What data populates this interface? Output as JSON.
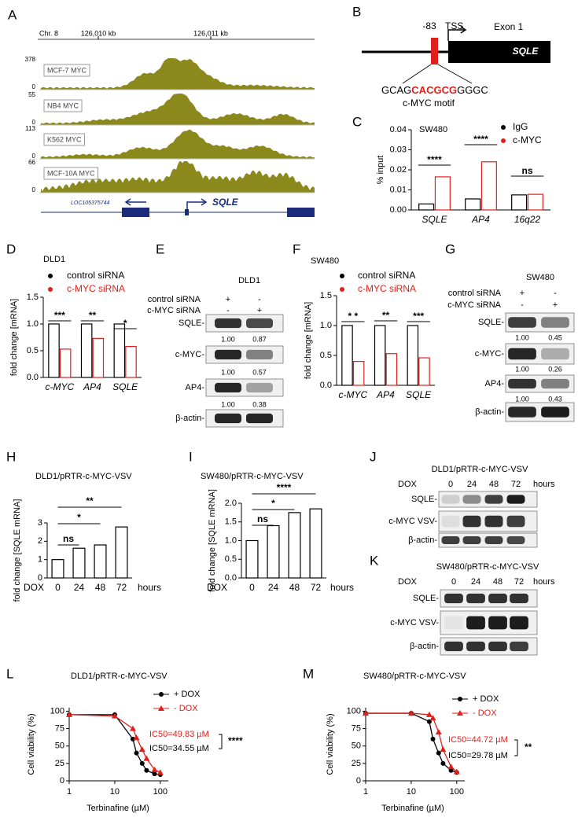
{
  "panel_labels": [
    "A",
    "B",
    "C",
    "D",
    "E",
    "F",
    "G",
    "H",
    "I",
    "J",
    "K",
    "L",
    "M"
  ],
  "genome_track": {
    "chromosome": "Chr. 8",
    "coordinates": [
      "126,010 kb",
      "126,011 kb"
    ],
    "tracks": [
      {
        "name": "MCF-7 MYC",
        "max": 378,
        "min": 0
      },
      {
        "name": "NB4 MYC",
        "max": 55,
        "min": 0
      },
      {
        "name": "K562 MYC",
        "max": 113,
        "min": 0
      },
      {
        "name": "MCF-10A MYC",
        "max": 66,
        "min": 0
      }
    ],
    "genes": [
      "LOC105375744",
      "SQLE"
    ]
  },
  "promoter": {
    "position": "-83",
    "tss": "TSS",
    "exon": "Exon 1",
    "gene": "SQLE",
    "sequence": [
      "GCAG",
      "CACGCG",
      "GGGC"
    ],
    "motif": "c-MYC motif"
  },
  "blots": [
    {
      "title": "DLD1",
      "conditions": [
        {
          "label": "control siRNA",
          "signs": [
            "+",
            "-"
          ]
        },
        {
          "label": "c-MYC siRNA",
          "signs": [
            "-",
            "+"
          ]
        }
      ],
      "rows": [
        {
          "label": "SQLE-",
          "quantification": [
            "1.00",
            "0.87"
          ]
        },
        {
          "label": "c-MYC-",
          "quantification": [
            "1.00",
            "0.57"
          ]
        },
        {
          "label": "AP4-",
          "quantification": [
            "1.00",
            "0.38"
          ]
        },
        {
          "label": "β-actin-"
        }
      ]
    },
    {
      "title": "SW480",
      "conditions": [
        {
          "label": "control siRNA",
          "signs": [
            "+",
            "-"
          ]
        },
        {
          "label": "c-MYC siRNA",
          "signs": [
            "-",
            "+"
          ]
        }
      ],
      "rows": [
        {
          "label": "SQLE-",
          "quantification": [
            "1.00",
            "0.45"
          ]
        },
        {
          "label": "c-MYC-",
          "quantification": [
            "1.00",
            "0.26"
          ]
        },
        {
          "label": "AP4-",
          "quantification": [
            "1.00",
            "0.43"
          ]
        },
        {
          "label": "β-actin-"
        }
      ]
    },
    {
      "title": "DLD1/pRTR-c-MYC-VSV",
      "time_label": "DOX",
      "timepoints": [
        "0",
        "24",
        "48",
        "72"
      ],
      "time_unit": "hours",
      "rows": [
        {
          "label": "SQLE-"
        },
        {
          "label": "c-MYC VSV-"
        },
        {
          "label": "β-actin-"
        }
      ]
    },
    {
      "title": "SW480/pRTR-c-MYC-VSV",
      "time_label": "DOX",
      "timepoints": [
        "0",
        "24",
        "48",
        "72"
      ],
      "time_unit": "hours",
      "rows": [
        {
          "label": "SQLE-"
        },
        {
          "label": "c-MYC VSV-"
        },
        {
          "label": "β-actin-"
        }
      ]
    }
  ],
  "chart_data": [
    {
      "type": "bar",
      "title": "SW480",
      "y_label": "% input",
      "categories": [
        "SQLE",
        "AP4",
        "16q22"
      ],
      "category_style": "italic",
      "series": [
        {
          "name": "IgG",
          "color": "#000000",
          "values": [
            0.003,
            0.0055,
            0.0075
          ]
        },
        {
          "name": "c-MYC",
          "color": "#e0201b",
          "values": [
            0.0165,
            0.024,
            0.0078
          ]
        }
      ],
      "ylim": [
        0,
        0.04
      ],
      "yticks": [
        {
          "value": 0,
          "label": "0.00"
        },
        {
          "value": 0.01,
          "label": "0.01"
        },
        {
          "value": 0.02,
          "label": "0.02"
        },
        {
          "value": 0.03,
          "label": "0.03"
        },
        {
          "value": 0.04,
          "label": "0.04"
        }
      ],
      "annotations": [
        "****",
        "****",
        "ns"
      ]
    },
    {
      "type": "bar",
      "title": "DLD1",
      "y_label": "fold change [mRNA]",
      "categories": [
        "c-MYC",
        "AP4",
        "SQLE"
      ],
      "category_style": "italic",
      "legend_text_colored": true,
      "series": [
        {
          "name": "control siRNA",
          "color": "#000000",
          "values": [
            1.0,
            1.0,
            1.0
          ]
        },
        {
          "name": "c-MYC siRNA",
          "color": "#e0201b",
          "values": [
            0.53,
            0.73,
            0.58
          ]
        }
      ],
      "ylim": [
        0,
        1.5
      ],
      "yticks": [
        {
          "value": 0,
          "label": "0.0"
        },
        {
          "value": 0.5,
          "label": "0.5"
        },
        {
          "value": 1,
          "label": "1.0"
        },
        {
          "value": 1.5,
          "label": "1.5"
        }
      ],
      "annotations": [
        "***",
        "**",
        "*"
      ]
    },
    {
      "type": "bar",
      "title": "SW480",
      "y_label": "fold change [mRNA]",
      "categories": [
        "c-MYC",
        "AP4",
        "SQLE"
      ],
      "category_style": "italic",
      "legend_text_colored": true,
      "series": [
        {
          "name": "control siRNA",
          "color": "#000000",
          "values": [
            1.0,
            1.0,
            1.0
          ]
        },
        {
          "name": "c-MYC siRNA",
          "color": "#e0201b",
          "values": [
            0.4,
            0.53,
            0.46
          ]
        }
      ],
      "ylim": [
        0,
        1.5
      ],
      "yticks": [
        {
          "value": 0,
          "label": "0.0"
        },
        {
          "value": 0.5,
          "label": "0.5"
        },
        {
          "value": 1,
          "label": "1.0"
        },
        {
          "value": 1.5,
          "label": "1.5"
        }
      ],
      "annotations": [
        "* *",
        "**",
        "***"
      ]
    },
    {
      "type": "bar",
      "title": "DLD1/pRTR-c-MYC-VSV",
      "y_label": "fold change [SQLE mRNA]",
      "x_label": "DOX",
      "x_unit": "hours",
      "categories": [
        "0",
        "24",
        "48",
        "72"
      ],
      "values": [
        1.0,
        1.62,
        1.8,
        2.78
      ],
      "color": "#000000",
      "ylim": [
        0,
        3
      ],
      "yticks": [
        0,
        1,
        2,
        3
      ],
      "annotations": [
        "ns",
        "*",
        "**"
      ]
    },
    {
      "type": "bar",
      "title": "SW480/pRTR-c-MYC-VSV",
      "y_label": "fold change [SQLE mRNA]",
      "x_label": "DOX",
      "x_unit": "hours",
      "categories": [
        "0",
        "24",
        "48",
        "72"
      ],
      "values": [
        1.0,
        1.4,
        1.75,
        1.85
      ],
      "color": "#000000",
      "ylim": [
        0,
        2
      ],
      "yticks": [
        {
          "value": 0,
          "label": "0.0"
        },
        {
          "value": 0.5,
          "label": "0.5"
        },
        {
          "value": 1,
          "label": "1.0"
        },
        {
          "value": 1.5,
          "label": "1.5"
        },
        {
          "value": 2,
          "label": "2.0"
        }
      ],
      "annotations": [
        "ns",
        "*",
        "****"
      ]
    },
    {
      "type": "line",
      "title": "DLD1/pRTR-c-MYC-VSV",
      "x_label": "Terbinafine (µM)",
      "y_label": "Cell viability (%)",
      "xscale": "log",
      "x": [
        1,
        10,
        25,
        30,
        40,
        50,
        75,
        100
      ],
      "xlim": [
        1,
        150
      ],
      "xticks": [
        1,
        10,
        100
      ],
      "ylim": [
        0,
        105
      ],
      "yticks": [
        0,
        25,
        50,
        75,
        100
      ],
      "series": [
        {
          "name": "+ DOX",
          "color": "#000000",
          "marker": "circle",
          "values": [
            95,
            95,
            60,
            40,
            25,
            15,
            10,
            9
          ]
        },
        {
          "name": "- DOX",
          "color": "#e0201b",
          "marker": "triangle",
          "values": [
            95,
            93,
            75,
            62,
            45,
            32,
            16,
            12
          ]
        }
      ],
      "annotations": [
        {
          "text": "IC50=49.83 µM",
          "color": "#e0201b"
        },
        {
          "text": "IC50=34.55 µM",
          "color": "#000000"
        }
      ],
      "significance": "****"
    },
    {
      "type": "line",
      "title": "SW480/pRTR-c-MYC-VSV",
      "x_label": "Terbinafine (µM)",
      "y_label": "Cell viability (%)",
      "xscale": "log",
      "x": [
        1,
        10,
        25,
        30,
        40,
        50,
        75,
        100
      ],
      "xlim": [
        1,
        150
      ],
      "xticks": [
        1,
        10,
        100
      ],
      "ylim": [
        0,
        105
      ],
      "yticks": [
        0,
        25,
        50,
        75,
        100
      ],
      "series": [
        {
          "name": "+ DOX",
          "color": "#000000",
          "marker": "circle",
          "values": [
            97,
            97,
            85,
            60,
            40,
            25,
            15,
            12
          ]
        },
        {
          "name": "- DOX",
          "color": "#e0201b",
          "marker": "triangle",
          "values": [
            97,
            97,
            95,
            90,
            70,
            45,
            20,
            13
          ]
        }
      ],
      "annotations": [
        {
          "text": "IC50=44.72 µM",
          "color": "#e0201b"
        },
        {
          "text": "IC50=29.78 µM",
          "color": "#000000"
        }
      ],
      "significance": "**"
    }
  ]
}
